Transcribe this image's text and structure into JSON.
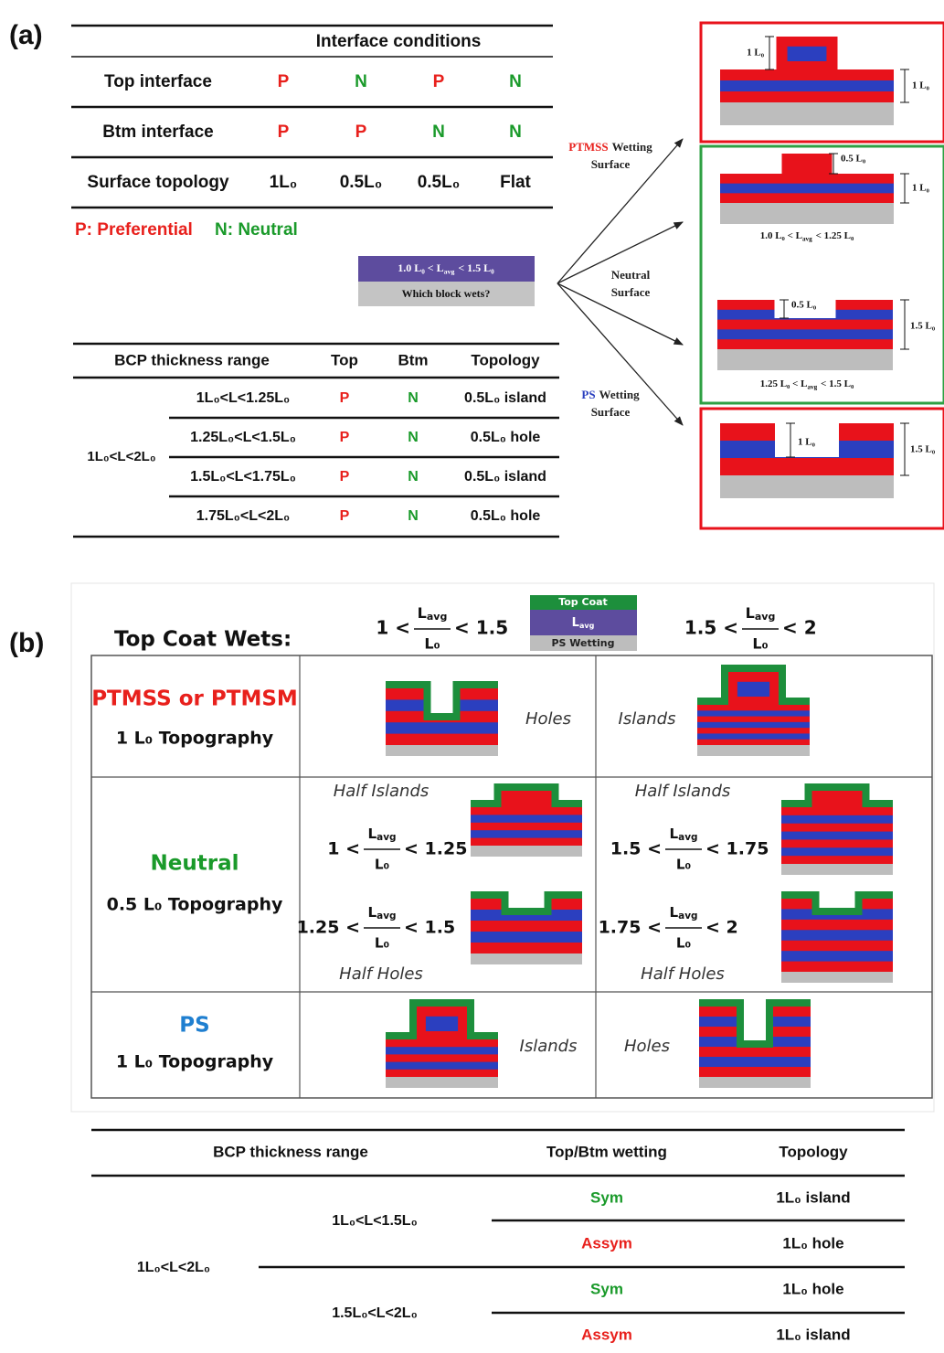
{
  "colors": {
    "P": "#e8201c",
    "N": "#1a9a2a",
    "Sym": "#1a9a2a",
    "Assym": "#e8201c"
  },
  "panel_a": {
    "label": "(a)",
    "conditions_table": {
      "header": "Interface conditions",
      "rows": [
        [
          "Top interface",
          "P",
          "N",
          "P",
          "N"
        ],
        [
          "Btm interface",
          "P",
          "P",
          "N",
          "N"
        ],
        [
          "Surface topology",
          "1L₀",
          "0.5L₀",
          "0.5L₀",
          "Flat"
        ]
      ]
    },
    "legend": [
      {
        "text": "P: Preferential",
        "color": "#e8201c"
      },
      {
        "text": "N: Neutral",
        "color": "#1a9a2a"
      }
    ],
    "question_box": {
      "range": [
        "1.0 L₀ < L",
        "avg",
        "< 1.5 L₀"
      ],
      "question": "Which block wets?"
    },
    "surfaces": [
      {
        "name": "PTMSS",
        "color": "#e8201c",
        "rest": "Wetting",
        "line2": "Surface"
      },
      {
        "name": "Neutral",
        "color": "#222222",
        "line2": "Surface"
      },
      {
        "name": "PS",
        "color": "#2a3fbf",
        "rest": "Wetting",
        "line2": "Surface"
      }
    ],
    "diagrams": [
      {
        "top_label": "1 L₀",
        "right_label": "1 L₀"
      },
      {
        "top_label": "0.5 L₀",
        "right_label": "1 L₀",
        "range": [
          "1.0 L₀ < L",
          "avg",
          "< 1.25 L₀"
        ]
      },
      {
        "top_label": "0.5 L₀",
        "right_label": "1.5 L₀",
        "range": [
          "1.25 L₀ < L",
          "avg",
          "< 1.5 L₀"
        ]
      },
      {
        "top_label": "1 L₀",
        "right_label": "1.5 L₀"
      }
    ],
    "thickness_table": {
      "headers": [
        "BCP thickness range",
        "Top",
        "Btm",
        "Topology"
      ],
      "group": "1L₀<L<2L₀",
      "rows": [
        [
          "1L₀<L<1.25L₀",
          "P",
          "N",
          "0.5L₀ island"
        ],
        [
          "1.25L₀<L<1.5L₀",
          "P",
          "N",
          "0.5L₀ hole"
        ],
        [
          "1.5L₀<L<1.75L₀",
          "P",
          "N",
          "0.5L₀ island"
        ],
        [
          "1.75L₀<L<2L₀",
          "P",
          "N",
          "0.5L₀ hole"
        ]
      ]
    }
  },
  "panel_b": {
    "label": "(b)",
    "header": {
      "title": "Top Coat Wets:",
      "fractions": [
        {
          "left": "1 <",
          "num": "L",
          "num_sub": "avg",
          "den": "L₀",
          "right": "< 1.5"
        },
        {
          "left": "1.5 <",
          "num": "L",
          "num_sub": "avg",
          "den": "L₀",
          "right": "< 2"
        }
      ],
      "legend": {
        "top": "Top Coat",
        "middle": [
          "L",
          "avg"
        ],
        "bottom": "PS Wetting"
      }
    },
    "rows": [
      {
        "title": "PTMSS or PTMSM",
        "color": "#e8201c",
        "subtitle": "1 L₀ Topography",
        "left_label": "Holes",
        "right_label": "Islands"
      },
      {
        "title": "Neutral",
        "color": "#1a9a2a",
        "subtitle": "0.5 L₀ Topography",
        "left": {
          "top": "Half Islands",
          "bottom": "Half Holes",
          "fractions": [
            {
              "left": "1 <",
              "num": "L",
              "num_sub": "avg",
              "den": "L₀",
              "right": "< 1.25"
            },
            {
              "left": "1.25 <",
              "num": "L",
              "num_sub": "avg",
              "den": "L₀",
              "right": "< 1.5"
            }
          ]
        },
        "right": {
          "top": "Half Islands",
          "bottom": "Half Holes",
          "fractions": [
            {
              "left": "1.5 <",
              "num": "L",
              "num_sub": "avg",
              "den": "L₀",
              "right": "< 1.75"
            },
            {
              "left": "1.75 <",
              "num": "L",
              "num_sub": "avg",
              "den": "L₀",
              "right": "< 2"
            }
          ]
        }
      },
      {
        "title": "PS",
        "color": "#1f7fd0",
        "subtitle": "1 L₀ Topography",
        "left_label": "Islands",
        "right_label": "Holes"
      }
    ],
    "wetting_table": {
      "headers": [
        "BCP thickness range",
        "Top/Btm wetting",
        "Topology"
      ],
      "group": "1L₀<L<2L₀",
      "subgroups": [
        {
          "range": "1L₀<L<1.5L₀",
          "rows": [
            [
              "Sym",
              "1L₀ island"
            ],
            [
              "Assym",
              "1L₀ hole"
            ]
          ]
        },
        {
          "range": "1.5L₀<L<2L₀",
          "rows": [
            [
              "Sym",
              "1L₀ hole"
            ],
            [
              "Assym",
              "1L₀ island"
            ]
          ]
        }
      ]
    }
  }
}
